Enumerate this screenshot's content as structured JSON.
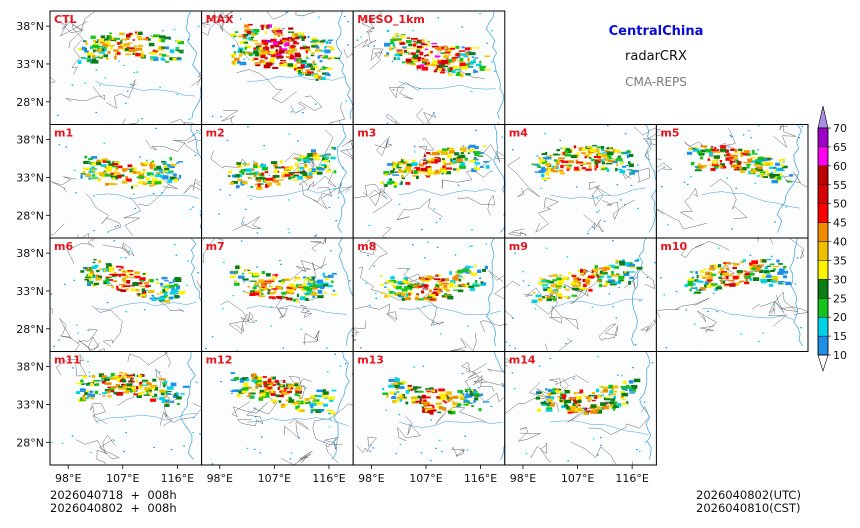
{
  "header": {
    "region": "CentralChina",
    "variable": "radarCRX",
    "model": "CMA-REPS"
  },
  "footer": {
    "init_line1": "2026040718  +  008h",
    "init_line2": "2026040802  +  008h",
    "valid_utc": "2026040802(UTC)",
    "valid_cst": "2026040810(CST)"
  },
  "colors": {
    "panel_label": "#e8141c",
    "header_region": "#0b0bd6",
    "coast": "#3b9fd8",
    "border": "#555555"
  },
  "chart_data": {
    "type": "heatmap",
    "title": "radarCRX",
    "subtitle": "CentralChina — CMA-REPS",
    "panels": [
      [
        "CTL",
        "MAX",
        "MESO_1km"
      ],
      [
        "m1",
        "m2",
        "m3",
        "m4",
        "m5"
      ],
      [
        "m6",
        "m7",
        "m8",
        "m9",
        "m10"
      ],
      [
        "m11",
        "m12",
        "m13",
        "m14"
      ]
    ],
    "x_ticks": [
      "98°E",
      "107°E",
      "116°E"
    ],
    "x_tick_values": [
      98,
      107,
      116
    ],
    "y_ticks": [
      "38°N",
      "33°N",
      "28°N"
    ],
    "y_tick_values": [
      38,
      33,
      28
    ],
    "xlim": [
      95,
      120
    ],
    "ylim": [
      25,
      40
    ],
    "colorbar": {
      "levels": [
        10,
        15,
        20,
        25,
        30,
        35,
        40,
        45,
        50,
        55,
        60,
        65,
        70
      ],
      "labels": [
        "10",
        "15",
        "20",
        "25",
        "30",
        "35",
        "40",
        "45",
        "50",
        "55",
        "60",
        "65",
        "70"
      ],
      "colors": [
        "#1e90e8",
        "#00d2e6",
        "#15c21a",
        "#0a7d14",
        "#fff200",
        "#f0c000",
        "#f08c00",
        "#ff0000",
        "#d70000",
        "#be0000",
        "#ff00f0",
        "#9e00c8",
        "#a98be0"
      ],
      "extend": "both"
    }
  }
}
